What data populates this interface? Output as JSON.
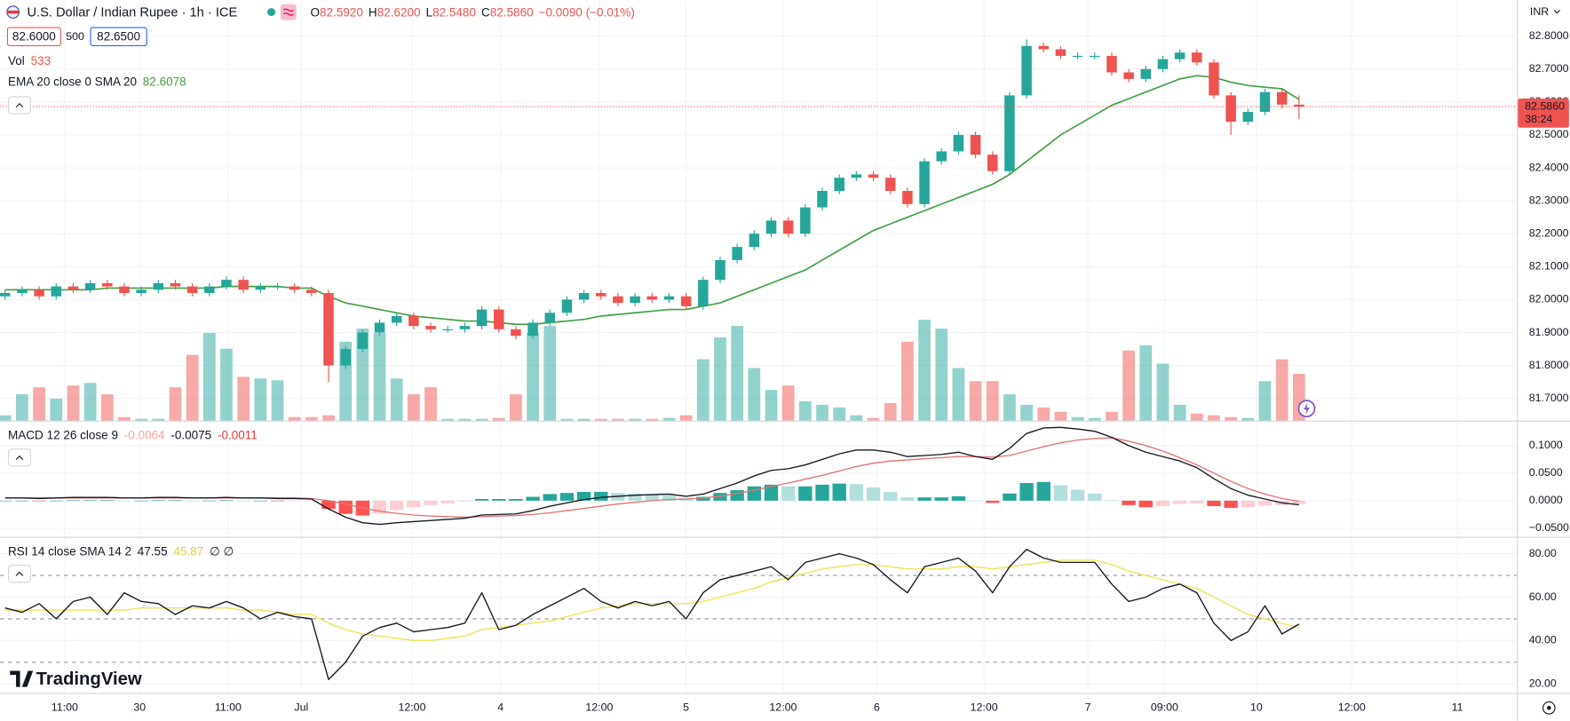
{
  "toolbar": {
    "symbol": "U.S. Dollar / Indian Rupee · 1h · ICE",
    "ohlc": [
      {
        "k": "O",
        "v": "82.5920"
      },
      {
        "k": "H",
        "v": "82.6200"
      },
      {
        "k": "L",
        "v": "82.5480"
      },
      {
        "k": "C",
        "v": "82.5860"
      }
    ],
    "change": "−0.0090 (−0.01%)",
    "bid": "82.6000",
    "spread": "500",
    "ask": "82.6500",
    "currency": "INR",
    "logo": "TradingView"
  },
  "chart_data": [
    {
      "type": "candlestick",
      "volume_title": "Vol",
      "ema_title": "EMA 20 close 0 SMA 20",
      "last_label": "82.5860",
      "countdown": "38:24",
      "up_color": "#26a69a",
      "down_color": "#ef5350",
      "ema_color": "#43a047",
      "xlim": [
        -0.3,
        88.8
      ],
      "ylim": [
        81.6328,
        82.9094
      ],
      "volume_ylim": [
        0,
        4800
      ],
      "yticks": [
        {
          "value": 81.7,
          "label": "81.7000"
        },
        {
          "value": 81.8,
          "label": "81.8000"
        },
        {
          "value": 81.9,
          "label": "81.9000"
        },
        {
          "value": 82.0,
          "label": "82.0000"
        },
        {
          "value": 82.1,
          "label": "82.1000"
        },
        {
          "value": 82.2,
          "label": "82.2000"
        },
        {
          "value": 82.3,
          "label": "82.3000"
        },
        {
          "value": 82.4,
          "label": "82.4000"
        },
        {
          "value": 82.5,
          "label": "82.5000"
        },
        {
          "value": 82.6,
          "label": "82.6000"
        },
        {
          "value": 82.7,
          "label": "82.7000"
        },
        {
          "value": 82.8,
          "label": "82.8000"
        }
      ],
      "open": [
        82.01,
        82.02,
        82.03,
        82.01,
        82.04,
        82.03,
        82.05,
        82.04,
        82.02,
        82.03,
        82.05,
        82.04,
        82.02,
        82.04,
        82.06,
        82.03,
        82.04,
        82.04,
        82.03,
        82.02,
        81.8,
        81.85,
        81.9,
        81.93,
        81.95,
        81.92,
        81.91,
        81.91,
        81.92,
        81.97,
        81.91,
        81.89,
        81.93,
        81.96,
        82.0,
        82.02,
        82.01,
        81.99,
        82.01,
        82.0,
        82.01,
        81.98,
        82.06,
        82.12,
        82.16,
        82.2,
        82.24,
        82.2,
        82.28,
        82.33,
        82.37,
        82.38,
        82.37,
        82.33,
        82.29,
        82.42,
        82.45,
        82.5,
        82.44,
        82.39,
        82.62,
        82.77,
        82.76,
        82.74,
        82.74,
        82.74,
        82.69,
        82.67,
        82.7,
        82.73,
        82.75,
        82.72,
        82.62,
        82.54,
        82.57,
        82.63,
        82.592
      ],
      "high": [
        82.03,
        82.04,
        82.04,
        82.05,
        82.05,
        82.06,
        82.06,
        82.05,
        82.04,
        82.06,
        82.06,
        82.05,
        82.05,
        82.07,
        82.07,
        82.05,
        82.05,
        82.05,
        82.04,
        82.03,
        81.86,
        81.91,
        81.94,
        81.96,
        81.96,
        81.93,
        81.92,
        81.93,
        81.98,
        81.98,
        81.92,
        81.94,
        81.97,
        82.01,
        82.03,
        82.03,
        82.02,
        82.02,
        82.02,
        82.02,
        82.02,
        82.07,
        82.13,
        82.17,
        82.21,
        82.25,
        82.25,
        82.29,
        82.34,
        82.38,
        82.39,
        82.39,
        82.38,
        82.34,
        82.43,
        82.46,
        82.51,
        82.51,
        82.45,
        82.63,
        82.79,
        82.78,
        82.77,
        82.75,
        82.75,
        82.75,
        82.7,
        82.71,
        82.74,
        82.76,
        82.76,
        82.73,
        82.63,
        82.58,
        82.64,
        82.64,
        82.62
      ],
      "low": [
        82.0,
        82.01,
        82.0,
        82.0,
        82.02,
        82.02,
        82.03,
        82.01,
        82.01,
        82.02,
        82.03,
        82.01,
        82.01,
        82.03,
        82.02,
        82.02,
        82.03,
        82.02,
        82.01,
        81.75,
        81.79,
        81.84,
        81.89,
        81.92,
        81.91,
        81.9,
        81.9,
        81.9,
        81.91,
        81.9,
        81.88,
        81.88,
        81.92,
        81.95,
        81.99,
        82.0,
        81.98,
        81.98,
        81.99,
        81.99,
        81.97,
        81.97,
        82.05,
        82.11,
        82.15,
        82.19,
        82.19,
        82.19,
        82.27,
        82.32,
        82.36,
        82.36,
        82.32,
        82.28,
        82.28,
        82.41,
        82.44,
        82.43,
        82.38,
        82.38,
        82.61,
        82.75,
        82.73,
        82.73,
        82.73,
        82.68,
        82.66,
        82.66,
        82.69,
        82.72,
        82.71,
        82.61,
        82.5,
        82.53,
        82.56,
        82.58,
        82.548
      ],
      "close": [
        82.02,
        82.03,
        82.01,
        82.04,
        82.03,
        82.05,
        82.04,
        82.02,
        82.03,
        82.05,
        82.04,
        82.02,
        82.04,
        82.06,
        82.03,
        82.04,
        82.04,
        82.03,
        82.02,
        81.8,
        81.85,
        81.9,
        81.93,
        81.95,
        81.92,
        81.91,
        81.91,
        81.92,
        81.97,
        81.91,
        81.89,
        81.93,
        81.96,
        82.0,
        82.02,
        82.01,
        81.99,
        82.01,
        82.0,
        82.01,
        81.98,
        82.06,
        82.12,
        82.16,
        82.2,
        82.24,
        82.2,
        82.28,
        82.33,
        82.37,
        82.38,
        82.37,
        82.33,
        82.29,
        82.42,
        82.45,
        82.5,
        82.44,
        82.39,
        82.62,
        82.77,
        82.76,
        82.74,
        82.74,
        82.74,
        82.69,
        82.67,
        82.7,
        82.73,
        82.75,
        82.72,
        82.62,
        82.54,
        82.57,
        82.63,
        82.592,
        82.586
      ],
      "volume": [
        60,
        300,
        380,
        250,
        400,
        430,
        300,
        40,
        20,
        20,
        380,
        750,
        1000,
        820,
        500,
        480,
        460,
        40,
        40,
        60,
        900,
        1050,
        1000,
        480,
        300,
        380,
        20,
        20,
        20,
        30,
        300,
        1000,
        1080,
        20,
        20,
        20,
        20,
        20,
        20,
        30,
        60,
        700,
        950,
        1080,
        600,
        350,
        400,
        220,
        180,
        150,
        60,
        30,
        200,
        900,
        1150,
        1050,
        600,
        450,
        450,
        300,
        180,
        150,
        100,
        40,
        30,
        100,
        800,
        860,
        650,
        180,
        80,
        60,
        40,
        30,
        450,
        700,
        533
      ],
      "ema": [
        82.03,
        82.03,
        82.03,
        82.03,
        82.03,
        82.03,
        82.035,
        82.035,
        82.035,
        82.035,
        82.035,
        82.035,
        82.035,
        82.04,
        82.04,
        82.04,
        82.04,
        82.035,
        82.035,
        82.01,
        81.99,
        81.98,
        81.97,
        81.96,
        81.95,
        81.945,
        81.94,
        81.935,
        81.935,
        81.93,
        81.925,
        81.925,
        81.93,
        81.935,
        81.94,
        81.95,
        81.955,
        81.96,
        81.965,
        81.97,
        81.97,
        81.98,
        81.99,
        82.01,
        82.03,
        82.05,
        82.07,
        82.09,
        82.12,
        82.15,
        82.18,
        82.21,
        82.23,
        82.25,
        82.27,
        82.29,
        82.31,
        82.33,
        82.35,
        82.38,
        82.42,
        82.46,
        82.5,
        82.53,
        82.56,
        82.59,
        82.61,
        82.63,
        82.65,
        82.67,
        82.68,
        82.675,
        82.66,
        82.65,
        82.645,
        82.64,
        82.6078
      ]
    },
    {
      "type": "macd",
      "title": "MACD 12 26 close 9",
      "macd_color": "#131722",
      "signal_color": "#e57373",
      "histogram_colors": [
        "#26a69a",
        "#b2dfdb",
        "#ffcdd2",
        "#ff5252"
      ],
      "xlim": [
        -0.3,
        88.8
      ],
      "ylim": [
        -0.0636,
        0.1436
      ],
      "yticks": [
        {
          "value": -0.05,
          "label": "−0.0500"
        },
        {
          "value": 0,
          "label": "0.0000"
        },
        {
          "value": 0.05,
          "label": "0.0500"
        },
        {
          "value": 0.1,
          "label": "0.1000"
        }
      ],
      "histogram": [
        0,
        0,
        -0.001,
        0,
        0.001,
        0.001,
        0.001,
        0,
        0,
        0.001,
        0.001,
        0,
        0,
        0.001,
        0,
        0,
        -0.001,
        -0.001,
        -0.001,
        -0.015,
        -0.024,
        -0.027,
        -0.024,
        -0.017,
        -0.012,
        -0.008,
        -0.005,
        -0.002,
        0.003,
        0.003,
        0.003,
        0.007,
        0.012,
        0.014,
        0.016,
        0.016,
        0.014,
        0.013,
        0.011,
        0.01,
        0.005,
        0.007,
        0.014,
        0.019,
        0.026,
        0.029,
        0.026,
        0.026,
        0.029,
        0.031,
        0.03,
        0.024,
        0.016,
        0.006,
        0.006,
        0.006,
        0.008,
        0,
        -0.004,
        0.013,
        0.032,
        0.034,
        0.028,
        0.02,
        0.013,
        0.001,
        -0.008,
        -0.012,
        -0.01,
        -0.006,
        -0.005,
        -0.01,
        -0.013,
        -0.012,
        -0.009,
        -0.008,
        -0.0064
      ],
      "macd": [
        0.005,
        0.005,
        0.004,
        0.005,
        0.006,
        0.006,
        0.006,
        0.005,
        0.005,
        0.006,
        0.006,
        0.005,
        0.005,
        0.006,
        0.005,
        0.005,
        0.004,
        0.004,
        0.003,
        -0.015,
        -0.03,
        -0.04,
        -0.043,
        -0.04,
        -0.038,
        -0.036,
        -0.034,
        -0.032,
        -0.026,
        -0.025,
        -0.024,
        -0.018,
        -0.01,
        -0.004,
        0.002,
        0.006,
        0.008,
        0.01,
        0.011,
        0.012,
        0.008,
        0.012,
        0.022,
        0.032,
        0.045,
        0.055,
        0.058,
        0.065,
        0.075,
        0.085,
        0.092,
        0.092,
        0.088,
        0.08,
        0.082,
        0.084,
        0.088,
        0.08,
        0.075,
        0.095,
        0.122,
        0.132,
        0.133,
        0.13,
        0.126,
        0.115,
        0.1,
        0.088,
        0.08,
        0.072,
        0.06,
        0.04,
        0.022,
        0.01,
        0.003,
        -0.004,
        -0.0075
      ],
      "signal": [
        0.005,
        0.005,
        0.005,
        0.005,
        0.005,
        0.005,
        0.005,
        0.005,
        0.005,
        0.005,
        0.005,
        0.005,
        0.005,
        0.005,
        0.005,
        0.005,
        0.005,
        0.005,
        0.004,
        0,
        -0.006,
        -0.013,
        -0.019,
        -0.023,
        -0.026,
        -0.028,
        -0.029,
        -0.03,
        -0.029,
        -0.028,
        -0.027,
        -0.025,
        -0.022,
        -0.018,
        -0.014,
        -0.01,
        -0.006,
        -0.003,
        0,
        0.002,
        0.003,
        0.005,
        0.008,
        0.013,
        0.019,
        0.026,
        0.032,
        0.039,
        0.046,
        0.054,
        0.062,
        0.068,
        0.072,
        0.074,
        0.076,
        0.078,
        0.08,
        0.08,
        0.079,
        0.082,
        0.09,
        0.098,
        0.105,
        0.11,
        0.113,
        0.114,
        0.108,
        0.1,
        0.09,
        0.078,
        0.065,
        0.05,
        0.035,
        0.022,
        0.012,
        0.004,
        -0.0011
      ]
    },
    {
      "type": "rsi",
      "title": "RSI 14 close SMA 14 2",
      "extra": "∅ ∅",
      "color": "#131722",
      "sma_color": "#f2e35c",
      "bands": [
        70,
        50,
        30
      ],
      "xlim": [
        -0.3,
        88.8
      ],
      "ylim": [
        15.85,
        87.38
      ],
      "yticks": [
        {
          "value": 20,
          "label": "20.00"
        },
        {
          "value": 40,
          "label": "40.00"
        },
        {
          "value": 60,
          "label": "60.00"
        },
        {
          "value": 80,
          "label": "80.00"
        }
      ],
      "xticks": [
        {
          "value": 3.5,
          "label": "11:00"
        },
        {
          "value": 7.9,
          "label": "30"
        },
        {
          "value": 13.1,
          "label": "11:00"
        },
        {
          "value": 17.4,
          "label": "Jul"
        },
        {
          "value": 23.9,
          "label": "12:00"
        },
        {
          "value": 29.1,
          "label": "4"
        },
        {
          "value": 34.9,
          "label": "12:00"
        },
        {
          "value": 40,
          "label": "5"
        },
        {
          "value": 45.7,
          "label": "12:00"
        },
        {
          "value": 51.2,
          "label": "6"
        },
        {
          "value": 57.5,
          "label": "12:00"
        },
        {
          "value": 63.6,
          "label": "7"
        },
        {
          "value": 68.1,
          "label": "09:00"
        },
        {
          "value": 73.5,
          "label": "10"
        },
        {
          "value": 79.1,
          "label": "12:00"
        },
        {
          "value": 85.3,
          "label": "11"
        }
      ],
      "values": [
        55,
        53,
        57,
        50,
        58,
        60,
        52,
        62,
        58,
        57,
        52,
        56,
        55,
        58,
        55,
        50,
        53,
        51,
        50,
        22,
        30,
        42,
        46,
        48,
        44,
        45,
        46,
        48,
        62,
        45,
        47,
        52,
        56,
        60,
        64,
        58,
        55,
        58,
        56,
        58,
        50,
        62,
        68,
        70,
        72,
        74,
        68,
        76,
        78,
        80,
        78,
        75,
        68,
        62,
        74,
        76,
        78,
        72,
        62,
        74,
        82,
        78,
        76,
        76,
        76,
        66,
        58,
        60,
        64,
        66,
        62,
        48,
        40,
        44,
        56,
        43,
        47.55
      ],
      "sma": [
        54,
        54,
        54,
        54,
        54,
        54,
        54,
        54,
        55,
        55,
        55,
        55,
        55,
        55,
        54,
        54,
        53,
        52,
        52,
        48,
        45,
        43,
        42,
        41,
        40,
        40,
        41,
        42,
        45,
        46,
        47,
        48,
        49,
        51,
        53,
        55,
        56,
        57,
        57,
        57,
        57,
        58,
        60,
        62,
        64,
        67,
        69,
        71,
        73,
        74,
        75,
        75,
        74,
        73,
        73,
        73,
        74,
        74,
        73,
        74,
        75,
        76,
        77,
        77,
        77,
        75,
        72,
        70,
        68,
        66,
        64,
        60,
        56,
        52,
        50,
        48,
        45.87
      ]
    }
  ]
}
